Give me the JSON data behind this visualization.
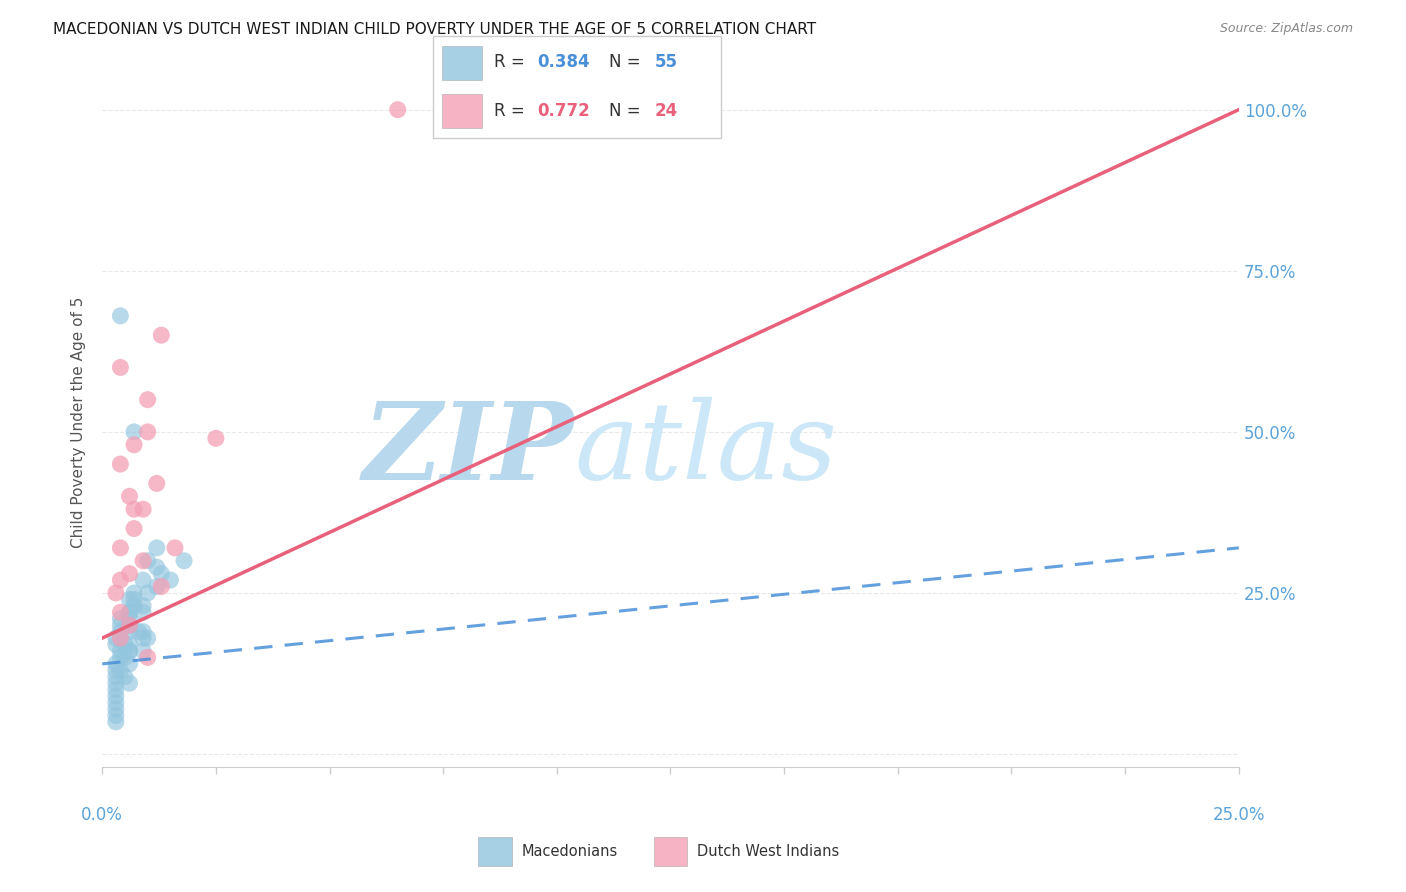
{
  "title": "MACEDONIAN VS DUTCH WEST INDIAN CHILD POVERTY UNDER THE AGE OF 5 CORRELATION CHART",
  "source": "Source: ZipAtlas.com",
  "ylabel": "Child Poverty Under the Age of 5",
  "legend1_r": "0.384",
  "legend1_n": "55",
  "legend2_r": "0.772",
  "legend2_n": "24",
  "legend1_label": "Macedonians",
  "legend2_label": "Dutch West Indians",
  "blue_color": "#92c5de",
  "pink_color": "#f4a0b5",
  "blue_line_color": "#4a90d9",
  "pink_line_color": "#e8607a",
  "blue_scatter_x": [
    0.3,
    0.5,
    0.4,
    0.8,
    0.6,
    1.0,
    0.3,
    0.6,
    0.4,
    0.9,
    0.3,
    0.7,
    0.3,
    0.6,
    1.0,
    0.3,
    0.6,
    0.4,
    0.9,
    0.5,
    0.3,
    0.6,
    0.4,
    1.2,
    0.6,
    0.3,
    0.9,
    0.4,
    0.7,
    0.4,
    1.3,
    0.6,
    0.3,
    0.9,
    0.6,
    0.4,
    0.7,
    1.0,
    1.2,
    0.6,
    0.3,
    0.6,
    0.9,
    0.3,
    0.5,
    0.3,
    0.6,
    0.3,
    0.9,
    0.6,
    1.5,
    1.2,
    0.4,
    0.7,
    1.8
  ],
  "blue_scatter_y": [
    18,
    15,
    20,
    19,
    22,
    18,
    17,
    16,
    21,
    23,
    14,
    24,
    13,
    19,
    25,
    12,
    20,
    15,
    18,
    17,
    11,
    22,
    16,
    26,
    21,
    10,
    27,
    19,
    23,
    18,
    28,
    20,
    9,
    22,
    16,
    13,
    25,
    30,
    32,
    17,
    8,
    14,
    19,
    7,
    12,
    6,
    11,
    5,
    16,
    24,
    27,
    29,
    68,
    50,
    30
  ],
  "pink_scatter_x": [
    0.3,
    0.6,
    0.4,
    0.9,
    0.4,
    0.7,
    0.4,
    0.9,
    0.6,
    1.2,
    0.4,
    0.7,
    1.0,
    0.4,
    1.3,
    0.4,
    0.6,
    1.0,
    0.7,
    1.3,
    1.6,
    1.0,
    2.5,
    6.5
  ],
  "pink_scatter_y": [
    25,
    28,
    22,
    30,
    32,
    35,
    27,
    38,
    40,
    42,
    45,
    48,
    55,
    60,
    65,
    18,
    20,
    50,
    38,
    26,
    32,
    15,
    49,
    100
  ],
  "xlim": [
    0,
    25
  ],
  "ylim": [
    -2,
    105
  ],
  "xticks": [
    0,
    2.5,
    5.0,
    7.5,
    10.0,
    12.5,
    15.0,
    17.5,
    20.0,
    22.5,
    25.0
  ],
  "yticks": [
    0,
    25,
    50,
    75,
    100
  ],
  "ytick_labels_right": [
    "",
    "25.0%",
    "50.0%",
    "75.0%",
    "100.0%"
  ],
  "blue_line_x0": 0,
  "blue_line_x1": 25,
  "blue_line_y0": 14,
  "blue_line_y1": 32,
  "pink_line_x0": 0,
  "pink_line_x1": 25,
  "pink_line_y0": 18,
  "pink_line_y1": 100,
  "fig_width": 14.06,
  "fig_height": 8.92,
  "dpi": 100,
  "bg_color": "#ffffff",
  "grid_color": "#e8e8e8",
  "watermark_color": "#cce4f5",
  "tick_color": "#5ba3d9"
}
